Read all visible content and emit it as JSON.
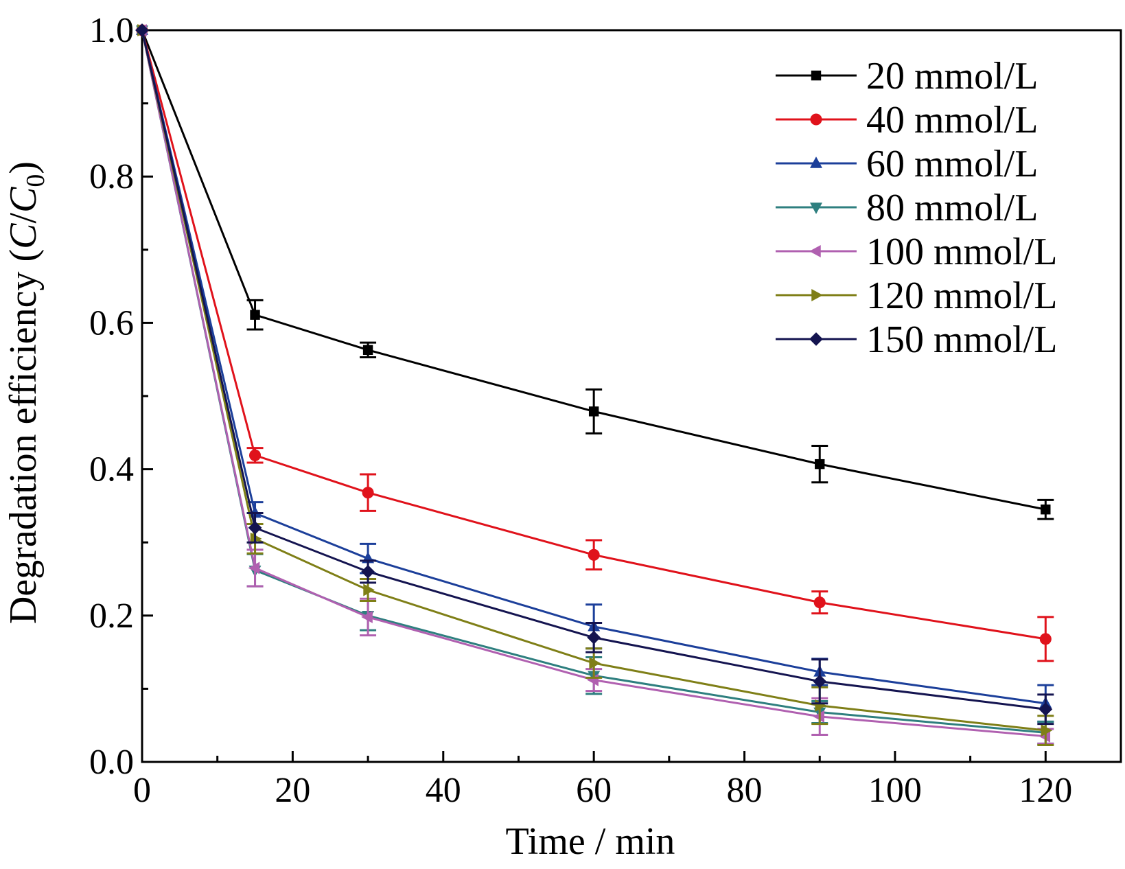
{
  "chart_data": {
    "type": "line",
    "title": "",
    "xlabel": "Time / min",
    "ylabel": {
      "main": "Degradation efficiency (",
      "c": "C",
      "slash": "/",
      "c0": "C",
      "sub": "0",
      "close": ")"
    },
    "xlim": [
      0,
      130
    ],
    "ylim": [
      0,
      1.0
    ],
    "xticks": [
      "0",
      "20",
      "40",
      "60",
      "80",
      "100",
      "120"
    ],
    "yticks": [
      "0.0",
      "0.2",
      "0.4",
      "0.6",
      "0.8",
      "1.0"
    ],
    "legend_position": "top-right",
    "grid": false,
    "x": [
      0,
      15,
      30,
      60,
      90,
      120
    ],
    "series": [
      {
        "name": "20 mmol/L",
        "color": "#000000",
        "marker": "square",
        "values": [
          1.0,
          0.611,
          0.563,
          0.479,
          0.407,
          0.345
        ],
        "errors": [
          0,
          0.02,
          0.01,
          0.03,
          0.025,
          0.013
        ]
      },
      {
        "name": "40 mmol/L",
        "color": "#e0121b",
        "marker": "circle",
        "values": [
          1.0,
          0.419,
          0.368,
          0.283,
          0.218,
          0.168
        ],
        "errors": [
          0,
          0.01,
          0.025,
          0.02,
          0.015,
          0.03
        ]
      },
      {
        "name": "60 mmol/L",
        "color": "#1c3f9a",
        "marker": "triangle-up",
        "values": [
          1.0,
          0.34,
          0.278,
          0.185,
          0.123,
          0.08
        ],
        "errors": [
          0,
          0.015,
          0.02,
          0.03,
          0.018,
          0.025
        ]
      },
      {
        "name": "80 mmol/L",
        "color": "#2e7f7f",
        "marker": "triangle-down",
        "values": [
          1.0,
          0.262,
          0.2,
          0.118,
          0.068,
          0.04
        ],
        "errors": [
          0,
          0.022,
          0.02,
          0.025,
          0.015,
          0.015
        ]
      },
      {
        "name": "100 mmol/L",
        "color": "#b060b0",
        "marker": "triangle-left",
        "values": [
          1.0,
          0.265,
          0.198,
          0.112,
          0.062,
          0.035
        ],
        "errors": [
          0,
          0.025,
          0.025,
          0.015,
          0.025,
          0.01
        ]
      },
      {
        "name": "120 mmol/L",
        "color": "#7f7f17",
        "marker": "triangle-right",
        "values": [
          1.0,
          0.305,
          0.235,
          0.135,
          0.077,
          0.043
        ],
        "errors": [
          0,
          0.02,
          0.015,
          0.02,
          0.025,
          0.02
        ]
      },
      {
        "name": "150 mmol/L",
        "color": "#141450",
        "marker": "diamond",
        "values": [
          1.0,
          0.32,
          0.26,
          0.17,
          0.11,
          0.072
        ],
        "errors": [
          0,
          0.02,
          0.015,
          0.02,
          0.03,
          0.02
        ]
      }
    ]
  }
}
